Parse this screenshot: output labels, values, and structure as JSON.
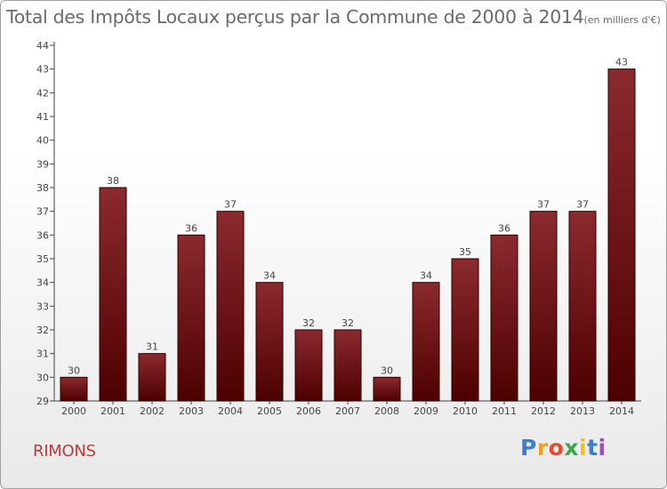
{
  "header": {
    "title": "Total des Impôts Locaux perçus par la Commune de 2000 à 2014",
    "unit": "(en milliers d'€)"
  },
  "footer": {
    "commune": "RIMONS",
    "brand_letters": [
      "P",
      "r",
      "o",
      "x",
      "i",
      "t",
      "i"
    ]
  },
  "colors": {
    "bar_top": "#8b2a2e",
    "bar_bottom": "#4d0000",
    "commune_text": "#c0393b",
    "axis_text": "#444444"
  },
  "chart_data": {
    "type": "bar",
    "title": "Total des Impôts Locaux perçus par la Commune de 2000 à 2014",
    "xlabel": "",
    "ylabel": "",
    "categories": [
      "2000",
      "2001",
      "2002",
      "2003",
      "2004",
      "2005",
      "2006",
      "2007",
      "2008",
      "2009",
      "2010",
      "2011",
      "2012",
      "2013",
      "2014"
    ],
    "values": [
      30,
      38,
      31,
      36,
      37,
      34,
      32,
      32,
      30,
      34,
      35,
      36,
      37,
      37,
      43
    ],
    "ylim": [
      29,
      44
    ],
    "yticks": [
      29,
      30,
      31,
      32,
      33,
      34,
      35,
      36,
      37,
      38,
      39,
      40,
      41,
      42,
      43,
      44
    ],
    "grid": false,
    "data_labels": true
  }
}
